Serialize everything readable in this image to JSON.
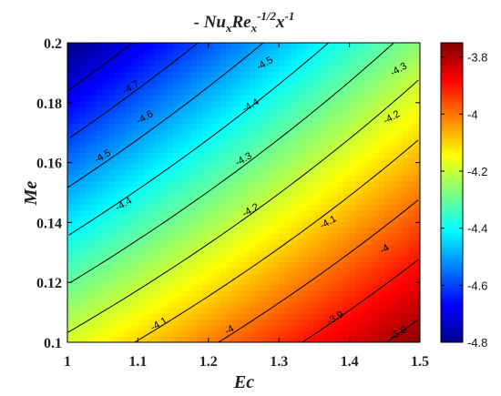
{
  "chart_data": {
    "type": "heatmap",
    "title": {
      "prefix": "- ",
      "nu": "Nu",
      "nu_sub": "x",
      "re": "Re",
      "re_sub": "x",
      "re_sup": "-1/2",
      "x": "x",
      "x_sup": "-1"
    },
    "xlabel": "Ec",
    "ylabel": "Me",
    "xlim": [
      1,
      1.5
    ],
    "ylim": [
      0.1,
      0.2
    ],
    "xticks": [
      "1",
      "1.1",
      "1.2",
      "1.3",
      "1.4",
      "1.5"
    ],
    "yticks": [
      "0.1",
      "0.12",
      "0.14",
      "0.16",
      "0.18",
      "0.2"
    ],
    "colorbar": {
      "min": -4.8,
      "max": -3.75,
      "colormap": "jet",
      "ticks": [
        "-3.8",
        "-4",
        "-4.2",
        "-4.4",
        "-4.6",
        "-4.8"
      ]
    },
    "corner_values": {
      "Ec1_Me0.1": -4.18,
      "Ec1.5_Me0.1": -3.76,
      "Ec1_Me0.2": -4.8,
      "Ec1.5_Me0.2": -4.26
    },
    "contour_levels": [
      -4.7,
      -4.6,
      -4.5,
      -4.4,
      -4.3,
      -4.2,
      -4.1,
      -4,
      -3.9,
      -3.8
    ],
    "contour_labels": [
      {
        "text": "-4.7",
        "ec": 1.09,
        "me": 0.185
      },
      {
        "text": "-4.6",
        "ec": 1.11,
        "me": 0.175
      },
      {
        "text": "-4.5",
        "ec": 1.28,
        "me": 0.193
      },
      {
        "text": "-4.5",
        "ec": 1.05,
        "me": 0.162
      },
      {
        "text": "-4.4",
        "ec": 1.26,
        "me": 0.179
      },
      {
        "text": "-4.4",
        "ec": 1.08,
        "me": 0.146
      },
      {
        "text": "-4.3",
        "ec": 1.47,
        "me": 0.191
      },
      {
        "text": "-4.3",
        "ec": 1.25,
        "me": 0.161
      },
      {
        "text": "-4.2",
        "ec": 1.46,
        "me": 0.175
      },
      {
        "text": "-4.2",
        "ec": 1.26,
        "me": 0.144
      },
      {
        "text": "-4.1",
        "ec": 1.37,
        "me": 0.14
      },
      {
        "text": "-4.1",
        "ec": 1.13,
        "me": 0.106
      },
      {
        "text": "-4",
        "ec": 1.45,
        "me": 0.131
      },
      {
        "text": "-4",
        "ec": 1.23,
        "me": 0.104
      },
      {
        "text": "-3.9",
        "ec": 1.38,
        "me": 0.108
      },
      {
        "text": "-3.8",
        "ec": 1.47,
        "me": 0.103
      }
    ]
  }
}
